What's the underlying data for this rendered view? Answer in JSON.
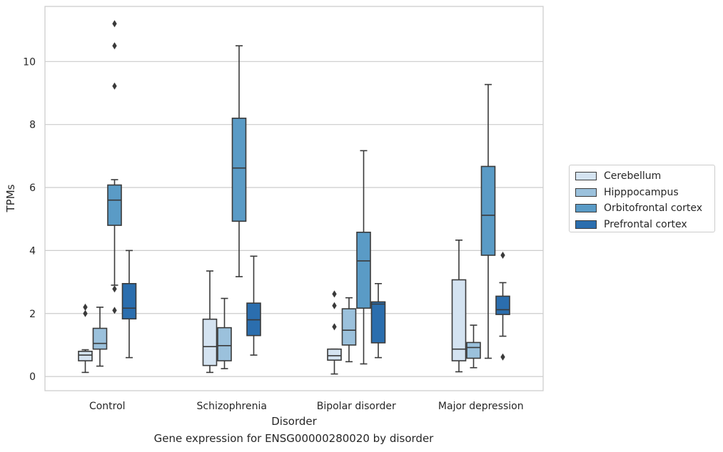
{
  "chart_data": {
    "type": "boxplot",
    "xlabel": "Disorder",
    "ylabel": "TPMs",
    "ylim": [
      -0.45,
      11.75
    ],
    "yticks": [
      0,
      2,
      4,
      6,
      8,
      10
    ],
    "grid": "horizontal",
    "legend_position": "right",
    "categories": [
      "Control",
      "Schizophrenia",
      "Bipolar disorder",
      "Major depression"
    ],
    "series": [
      {
        "name": "Cerebellum",
        "color": "#d4e3f1",
        "boxes": [
          {
            "whislo": 0.13,
            "q1": 0.5,
            "median": 0.68,
            "q3": 0.8,
            "whishi": 0.85,
            "fliers": [
              2.0,
              2.2
            ]
          },
          {
            "whislo": 0.13,
            "q1": 0.35,
            "median": 0.95,
            "q3": 1.82,
            "whishi": 3.35,
            "fliers": []
          },
          {
            "whislo": 0.08,
            "q1": 0.52,
            "median": 0.66,
            "q3": 0.87,
            "whishi": 0.87,
            "fliers": [
              1.58,
              2.25,
              2.62
            ]
          },
          {
            "whislo": 0.15,
            "q1": 0.5,
            "median": 0.87,
            "q3": 3.07,
            "whishi": 4.33,
            "fliers": []
          }
        ]
      },
      {
        "name": "Hipppocampus",
        "color": "#9bc1dc",
        "boxes": [
          {
            "whislo": 0.33,
            "q1": 0.87,
            "median": 1.05,
            "q3": 1.53,
            "whishi": 2.2,
            "fliers": []
          },
          {
            "whislo": 0.25,
            "q1": 0.5,
            "median": 0.98,
            "q3": 1.55,
            "whishi": 2.48,
            "fliers": []
          },
          {
            "whislo": 0.47,
            "q1": 1.0,
            "median": 1.47,
            "q3": 2.15,
            "whishi": 2.5,
            "fliers": []
          },
          {
            "whislo": 0.28,
            "q1": 0.58,
            "median": 0.92,
            "q3": 1.08,
            "whishi": 1.63,
            "fliers": []
          }
        ]
      },
      {
        "name": "Orbitofrontal cortex",
        "color": "#5a9bc6",
        "boxes": [
          {
            "whislo": 2.9,
            "q1": 4.8,
            "median": 5.6,
            "q3": 6.08,
            "whishi": 6.25,
            "fliers": [
              2.1,
              2.78,
              9.22,
              10.5,
              11.2
            ]
          },
          {
            "whislo": 3.17,
            "q1": 4.93,
            "median": 6.62,
            "q3": 8.2,
            "whishi": 10.5,
            "fliers": []
          },
          {
            "whislo": 0.4,
            "q1": 2.17,
            "median": 3.67,
            "q3": 4.58,
            "whishi": 7.17,
            "fliers": []
          },
          {
            "whislo": 0.58,
            "q1": 3.85,
            "median": 5.12,
            "q3": 6.67,
            "whishi": 9.27,
            "fliers": []
          }
        ]
      },
      {
        "name": "Prefrontal cortex",
        "color": "#2b6eae",
        "boxes": [
          {
            "whislo": 0.6,
            "q1": 1.83,
            "median": 2.17,
            "q3": 2.95,
            "whishi": 4.0,
            "fliers": []
          },
          {
            "whislo": 0.68,
            "q1": 1.3,
            "median": 1.8,
            "q3": 2.33,
            "whishi": 3.82,
            "fliers": []
          },
          {
            "whislo": 0.6,
            "q1": 1.07,
            "median": 2.3,
            "q3": 2.37,
            "whishi": 2.95,
            "fliers": []
          },
          {
            "whislo": 1.28,
            "q1": 1.97,
            "median": 2.12,
            "q3": 2.55,
            "whishi": 2.98,
            "fliers": [
              0.62,
              3.85
            ]
          }
        ]
      }
    ]
  },
  "caption": "Gene expression for ENSG00000280020 by disorder"
}
